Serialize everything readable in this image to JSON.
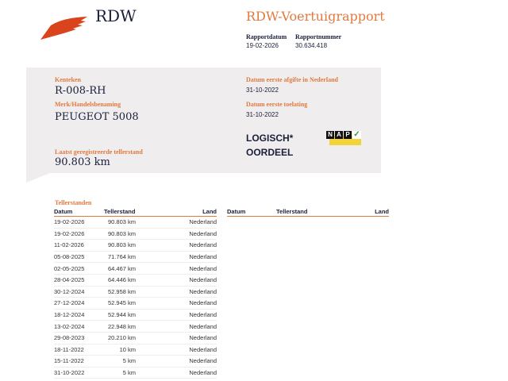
{
  "header": {
    "logo_text": "RDW",
    "title": "RDW-Voertuigrapport",
    "rapportdatum_label": "Rapportdatum",
    "rapportdatum": "19-02-2026",
    "rapportnummer_label": "Rapportnummer",
    "rapportnummer": "30.634.418"
  },
  "vehicle": {
    "kenteken_label": "Kenteken",
    "kenteken": "R-008-RH",
    "merk_label": "Merk/Handelsbenaming",
    "merk": "PEUGEOT 5008",
    "teller_label": "Laatst geregistreerde tellerstand",
    "teller": "90.803 km",
    "afgifte_label": "Datum eerste afgifte in Nederland",
    "afgifte": "31-10-2022",
    "toelating_label": "Datum eerste toelating",
    "toelating": "31-10-2022",
    "oordeel_line1": "LOGISCH*",
    "oordeel_line2": "OORDEEL",
    "nap_logo": "NAP"
  },
  "colors": {
    "accent": "#e07a3f",
    "navy": "#1a1f3a",
    "panel": "#efedee",
    "logo": "#d9441c"
  },
  "tellerstanden": {
    "title": "Tellerstanden",
    "headers": [
      "Datum",
      "Tellerstand",
      "Land"
    ],
    "rows": [
      [
        "19-02-2026",
        "90.803 km",
        "Nederland"
      ],
      [
        "19-02-2026",
        "90.803 km",
        "Nederland"
      ],
      [
        "11-02-2026",
        "90.803 km",
        "Nederland"
      ],
      [
        "05-08-2025",
        "71.764 km",
        "Nederland"
      ],
      [
        "02-05-2025",
        "64.467 km",
        "Nederland"
      ],
      [
        "28-04-2025",
        "64.446 km",
        "Nederland"
      ],
      [
        "30-12-2024",
        "52.958 km",
        "Nederland"
      ],
      [
        "27-12-2024",
        "52.945 km",
        "Nederland"
      ],
      [
        "18-12-2024",
        "52.944 km",
        "Nederland"
      ],
      [
        "13-02-2024",
        "22.948 km",
        "Nederland"
      ],
      [
        "29-08-2023",
        "20.210 km",
        "Nederland"
      ],
      [
        "18-11-2022",
        "10 km",
        "Nederland"
      ],
      [
        "15-11-2022",
        "5 km",
        "Nederland"
      ],
      [
        "31-10-2022",
        "5 km",
        "Nederland"
      ]
    ]
  }
}
